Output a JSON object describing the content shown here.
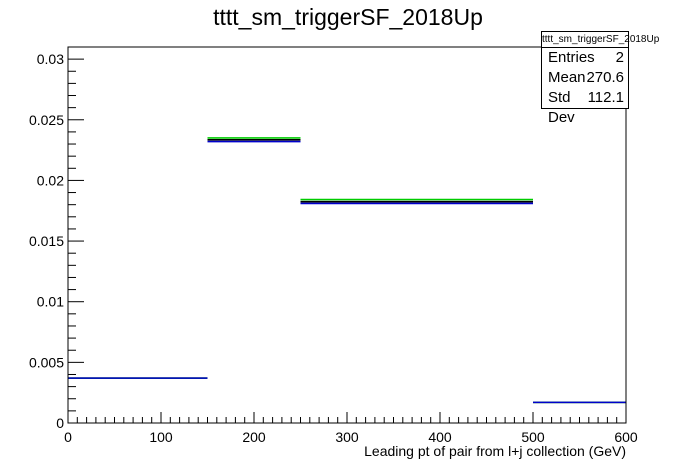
{
  "title": "tttt_sm_triggerSF_2018Up",
  "stats": {
    "name": "tttt_sm_triggerSF_2018Up",
    "entries_label": "Entries",
    "entries": "2",
    "mean_label": "Mean",
    "mean": "270.6",
    "stddev_label": "Std Dev",
    "stddev": "112.1"
  },
  "chart_data": {
    "type": "line",
    "title": "tttt_sm_triggerSF_2018Up",
    "xlabel": "Leading pt of pair from l+j collection (GeV)",
    "ylabel": "",
    "xlim": [
      0,
      600
    ],
    "ylim": [
      0,
      0.031
    ],
    "x_ticks": [
      "0",
      "100",
      "200",
      "300",
      "400",
      "500",
      "600"
    ],
    "y_ticks": [
      "0",
      "0.005",
      "0.01",
      "0.015",
      "0.02",
      "0.025",
      "0.03"
    ],
    "bin_edges": [
      0,
      150,
      250,
      500,
      600
    ],
    "series": [
      {
        "color": "#000000",
        "values": [
          0.0037,
          0.02335,
          0.01825,
          0.0017
        ]
      },
      {
        "color": "#00cc00",
        "values": [
          0.0037,
          0.0235,
          0.01842,
          0.0017
        ]
      },
      {
        "color": "#0000cc",
        "values": [
          0.0037,
          0.0232,
          0.0181,
          0.0017
        ]
      }
    ],
    "grid": false,
    "legend": "none"
  }
}
